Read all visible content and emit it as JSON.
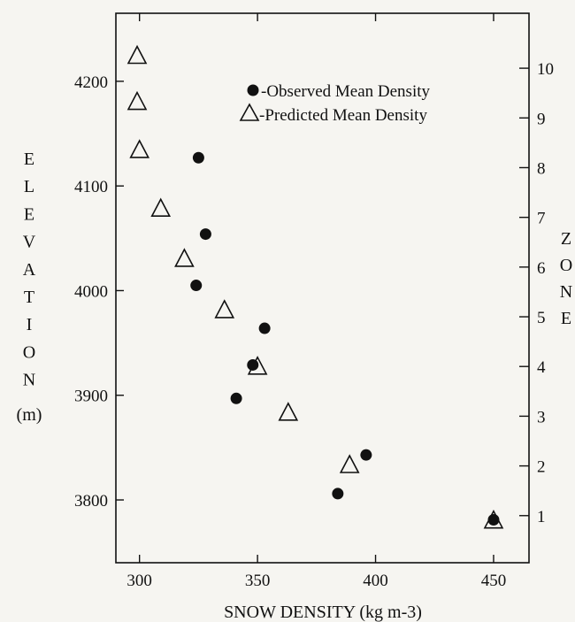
{
  "chart_data": {
    "type": "scatter",
    "x_axis": {
      "label": "SNOW DENSITY (kg m-3)",
      "ticks": [
        300,
        350,
        400,
        450
      ],
      "range": [
        290,
        465
      ]
    },
    "y_axis_left": {
      "label_letters": [
        "E",
        "L",
        "E",
        "V",
        "A",
        "T",
        "I",
        "O",
        "N"
      ],
      "unit": "(m)",
      "ticks": [
        3800,
        3900,
        4000,
        4100,
        4200
      ],
      "range": [
        3740,
        4265
      ]
    },
    "y_axis_right": {
      "label_letters": [
        "Z",
        "O",
        "N",
        "E"
      ],
      "ticks": [
        1,
        2,
        3,
        4,
        5,
        6,
        7,
        8,
        9,
        10
      ]
    },
    "legend": {
      "position": "top-right",
      "entries": [
        "-Observed Mean Density",
        "-Predicted Mean Density"
      ]
    },
    "series": [
      {
        "name": "-Observed Mean Density",
        "marker": "filled-circle",
        "points": [
          {
            "x": 325,
            "y": 4127
          },
          {
            "x": 328,
            "y": 4054
          },
          {
            "x": 324,
            "y": 4005
          },
          {
            "x": 353,
            "y": 3964
          },
          {
            "x": 348,
            "y": 3929
          },
          {
            "x": 341,
            "y": 3897
          },
          {
            "x": 396,
            "y": 3843
          },
          {
            "x": 384,
            "y": 3806
          },
          {
            "x": 450,
            "y": 3781
          }
        ]
      },
      {
        "name": "-Predicted Mean Density",
        "marker": "open-triangle",
        "points": [
          {
            "x": 299,
            "y": 4224
          },
          {
            "x": 299,
            "y": 4180
          },
          {
            "x": 300,
            "y": 4134
          },
          {
            "x": 309,
            "y": 4078
          },
          {
            "x": 319,
            "y": 4030
          },
          {
            "x": 336,
            "y": 3981
          },
          {
            "x": 350,
            "y": 3927
          },
          {
            "x": 363,
            "y": 3883
          },
          {
            "x": 389,
            "y": 3833
          },
          {
            "x": 450,
            "y": 3780
          }
        ]
      }
    ]
  }
}
